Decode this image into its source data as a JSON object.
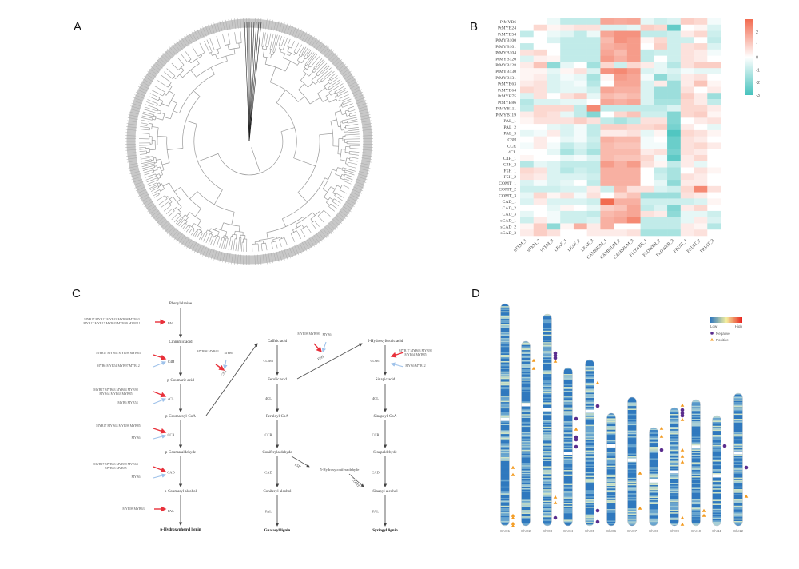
{
  "panels": {
    "a": "A",
    "b": "B",
    "c": "C",
    "d": "D"
  },
  "colors": {
    "heat_low": "#45c2bd",
    "heat_mid": "#ffffff",
    "heat_high": "#f26b50",
    "positive": "#f39a1e",
    "negative": "#5b2d8e",
    "up_arrow": "#e8303a",
    "down_arrow": "#9fc2ea"
  },
  "chart_data": {
    "type": "heatmap",
    "columns": [
      "STEM_1",
      "STEM_2",
      "STEM_3",
      "LEAF_1",
      "LEAF_2",
      "LEAF_3",
      "CAMBIUM_1",
      "CAMBIUM_2",
      "CAMBIUM_3",
      "FLOWER_1",
      "FLOWER_2",
      "FLOWER_3",
      "FRUIT_1",
      "FRUIT_2",
      "FRUIT_3"
    ],
    "rows": [
      "PtMYB6",
      "PtMYB24",
      "PtMYB54",
      "PtMYB100",
      "PtMYB101",
      "PtMYB104",
      "PtMYB120",
      "PtMYB128",
      "PtMYB130",
      "PtMYB131",
      "PtMYB63",
      "PtMYB64",
      "PtMYB75",
      "PtMYB86",
      "PtMYB111",
      "PtMYB119",
      "PAL_1",
      "PAL_2",
      "PAL_3",
      "C3H",
      "CCR",
      "4CL",
      "C4H_1",
      "C4H_2",
      "F5H_1",
      "F5H_2",
      "COMT_1",
      "COMT_2",
      "COMT_3",
      "CAD_1",
      "CAD_2",
      "CAD_3",
      "sCAD_1",
      "sCAD_2",
      "sCAD_3"
    ],
    "values": [
      [
        0,
        0,
        -0.3,
        -1,
        -1,
        -1,
        1.8,
        1.7,
        1.8,
        -0.4,
        -0.8,
        -0.6,
        1,
        0.8,
        -0.2
      ],
      [
        0,
        0.8,
        0.2,
        0.4,
        0.6,
        0.6,
        -0.6,
        -0.6,
        -0.4,
        1,
        0.8,
        -2.5,
        0,
        0.2,
        -0.6
      ],
      [
        -1,
        0,
        -0.3,
        -0.5,
        -1,
        -0.3,
        1.8,
        2.2,
        2.2,
        -1,
        -1,
        -0.8,
        0.4,
        0.8,
        -0.8
      ],
      [
        0,
        0,
        -0.6,
        -1,
        -1,
        -1,
        1.4,
        2.2,
        2,
        0.2,
        0.8,
        -0.8,
        -0.8,
        0,
        -1
      ],
      [
        -1,
        0,
        0,
        -1,
        -1,
        -1,
        1.6,
        1.8,
        2,
        0,
        1,
        -0.8,
        0.6,
        0.8,
        -0.6
      ],
      [
        0.6,
        0.8,
        0,
        -1,
        -1,
        -1,
        1.8,
        1.4,
        2,
        -1,
        -0.8,
        -0.8,
        0.6,
        0.4,
        -0.2
      ],
      [
        -0.6,
        0.3,
        0.2,
        -1,
        -1,
        -1,
        2,
        1.6,
        2,
        -1,
        0,
        -0.8,
        0.6,
        0.4,
        0
      ],
      [
        0.4,
        1.2,
        -1.8,
        -0.4,
        0,
        -1.5,
        0.8,
        -0.8,
        0.8,
        0.4,
        -0.4,
        -1.2,
        0.6,
        1,
        1
      ],
      [
        0.2,
        0.2,
        -0.4,
        0.2,
        0.6,
        -0.6,
        2.2,
        2.4,
        2,
        -0.6,
        -0.4,
        -0.6,
        -0.2,
        -0.4,
        -0.4
      ],
      [
        0.2,
        0.4,
        -0.6,
        -0.2,
        -0.4,
        -1.4,
        0.2,
        2,
        1.8,
        -0.2,
        -1.8,
        -0.8,
        0.4,
        0.6,
        0
      ],
      [
        0.4,
        0.6,
        -0.6,
        -0.4,
        -0.2,
        -1.2,
        0,
        1.8,
        1.8,
        -0.6,
        0.4,
        -1.6,
        0.4,
        1.2,
        0.2
      ],
      [
        0.8,
        0.6,
        -0.6,
        -0.4,
        -0.4,
        -0.8,
        1.8,
        1.6,
        1.6,
        -0.6,
        -1.6,
        -1.6,
        0.6,
        0,
        0.4
      ],
      [
        -0.6,
        0.6,
        0,
        0.6,
        1,
        -0.4,
        1.4,
        1.2,
        1.4,
        -0.6,
        -1.6,
        -1.6,
        1,
        0.4,
        -1.6
      ],
      [
        -1.2,
        -0.6,
        -0.6,
        -0.4,
        -0.4,
        0,
        1.8,
        1.6,
        1.8,
        -0.6,
        -1.4,
        -1.4,
        0.8,
        0.4,
        -1
      ],
      [
        -1,
        0.8,
        0.8,
        0.8,
        -1,
        2.4,
        -1,
        -1,
        -1,
        -1,
        -1,
        -0.6,
        0.8,
        0.8,
        0.4
      ],
      [
        0.4,
        0.8,
        0.6,
        -0.4,
        -1,
        -2,
        0,
        0.8,
        1.2,
        -0.8,
        -0.8,
        -2,
        0.8,
        1,
        0.2
      ],
      [
        0.2,
        0.6,
        0.6,
        0.6,
        1,
        0.6,
        -1,
        -1.4,
        -1,
        0.6,
        0.6,
        -2,
        0,
        0.4,
        0.6
      ],
      [
        0,
        0,
        -0.4,
        -0.6,
        -0.2,
        -1,
        1,
        1,
        0.8,
        0.8,
        1,
        -2.2,
        0.4,
        0,
        -0.4
      ],
      [
        -0.4,
        -0.2,
        0.4,
        -0.6,
        -0.2,
        -1,
        0.4,
        0.4,
        0.6,
        -0.4,
        0.2,
        -2.8,
        0.8,
        0.6,
        0.2
      ],
      [
        0,
        0.4,
        0,
        -0.4,
        -0.2,
        -0.8,
        1.6,
        1.4,
        1.4,
        -0.2,
        0,
        -2.4,
        0.6,
        0.4,
        0
      ],
      [
        -0.2,
        0.4,
        -0.2,
        -1,
        -0.6,
        -1,
        1.4,
        1.2,
        1.2,
        -0.2,
        -0.2,
        -2.4,
        0.6,
        0.8,
        0.4
      ],
      [
        0,
        0,
        -0.4,
        -1.4,
        -0.8,
        -1.4,
        1.4,
        1.4,
        1.4,
        0.4,
        0.6,
        -2.2,
        0.6,
        0.4,
        0
      ],
      [
        0.2,
        0,
        0,
        -0.4,
        -0.2,
        -0.6,
        1.4,
        1.2,
        1.2,
        0.8,
        -0.2,
        -2.6,
        0.4,
        0.8,
        0
      ],
      [
        -1.2,
        -0.4,
        -0.6,
        -1,
        -1,
        -1,
        2,
        1.6,
        2,
        0.6,
        0.2,
        -1,
        0.4,
        -0.4,
        0
      ],
      [
        0.8,
        0.6,
        -0.6,
        -1.2,
        -0.8,
        -1,
        1.6,
        1.6,
        1.6,
        0,
        -1,
        -1.4,
        0,
        0.6,
        0.2
      ],
      [
        0.6,
        0.4,
        -0.6,
        -0.6,
        -0.6,
        -0.8,
        1.6,
        1.6,
        1.6,
        0,
        -0.8,
        -1.4,
        0.6,
        0.4,
        0
      ],
      [
        -0.6,
        -0.2,
        -0.6,
        -0.4,
        0,
        -1,
        1.6,
        1.6,
        1.6,
        0,
        -0.4,
        -1.8,
        0.4,
        0.4,
        0
      ],
      [
        -0.8,
        -0.8,
        -0.8,
        -0.6,
        -0.6,
        0.4,
        -0.8,
        1.4,
        0.6,
        0.6,
        -0.6,
        -0.8,
        0.8,
        2.4,
        0.6
      ],
      [
        -0.4,
        0.8,
        0.2,
        0.6,
        -0.2,
        0.6,
        0,
        0.8,
        1.2,
        -1.6,
        -1.6,
        -1.6,
        0.6,
        0.4,
        0
      ],
      [
        -0.6,
        0.4,
        -0.6,
        -0.6,
        -0.6,
        -0.8,
        3,
        1.6,
        1.6,
        -0.8,
        -0.8,
        -0.8,
        -0.8,
        -0.6,
        0.2
      ],
      [
        0,
        0,
        -0.4,
        0.2,
        0,
        -0.4,
        1,
        1.2,
        1.8,
        -1,
        -0.6,
        -2,
        0.4,
        0.8,
        0
      ],
      [
        -0.4,
        0,
        -0.2,
        -0.8,
        -0.8,
        -1,
        1.4,
        1.6,
        1.8,
        0.6,
        0.4,
        -1.8,
        -0.4,
        -0.4,
        -0.8
      ],
      [
        -0.8,
        0.4,
        -0.2,
        -0.8,
        -0.8,
        -0.6,
        1.6,
        1.8,
        2.4,
        -1,
        -1,
        -1,
        -0.4,
        0.4,
        -0.6
      ],
      [
        0.2,
        1,
        -1.8,
        0.2,
        1.6,
        0.4,
        1.6,
        0,
        0,
        -1,
        -1,
        -1,
        0.4,
        0.2,
        -1.2
      ],
      [
        0.4,
        1,
        0.6,
        0,
        0,
        0.4,
        0.4,
        0.4,
        0.6,
        -1.4,
        -1.4,
        -1.4,
        0.4,
        0.6,
        0
      ]
    ],
    "colorbar": {
      "ticks": [
        "2",
        "1",
        "0",
        "-1",
        "-2",
        "-3"
      ],
      "range": [
        -3,
        3
      ]
    }
  },
  "pathway": {
    "col1": [
      "Phenylalanine",
      "Cinnamic acid",
      "p-Coumaric acid",
      "p-Coumaroyl-CoA",
      "p-Coumaraldehyde",
      "p-Coumaryl alcohol",
      "p-Hydroxyphenyl lignin"
    ],
    "col1_enzymes": [
      "PAL",
      "C4H",
      "4CL",
      "CCR",
      "CAD",
      "PAL"
    ],
    "col2": [
      "Caffeic acid",
      "Ferulic acid",
      "Feruloyl-CoA",
      "Coniferylaldehyde",
      "Coniferyl alcohol",
      "Guaiacyl lignin"
    ],
    "col2_enzymes": [
      "COMT",
      "4CL",
      "CCR",
      "CAD",
      "PAL"
    ],
    "col3": [
      "5-Hydroxyferulic acid",
      "Sinapic acid",
      "Sinapoyl-CoA",
      "Sinapaldehyde",
      "Sinapyl alcohol",
      "Syringyl lignin"
    ],
    "col3_enzymes": [
      "COMT",
      "4CL",
      "CCR",
      "CAD",
      "PAL"
    ],
    "side": {
      "c3h": "C3H",
      "f5h": "F5H",
      "f5h2": "F5H",
      "comt2": "COMT",
      "mid": "5-Hydroxyconiferaldehyde"
    },
    "genes": {
      "pal_up1": "MYB17 MYB17 MYB43 MYB98 MYB63",
      "pal_up2": "MYB17 MYB17 MYB43 MYB99 MYB111",
      "c4h_up": "MYB17 MYB64 MYB98 MYB63",
      "c4h_down": "MYB6 MYB54 MYB97 MYB12",
      "cl_up1": "MYB17 MYB63 MYB64 MYB98",
      "cl_up2": "MYB64 MYB63 MYB85",
      "cl_down": "MYB6 MYB54",
      "ccr_up": "MYB17 MYB63 MYB98 MYB85",
      "ccr_down": "MYB6",
      "cad_up1": "MYB17 MYB63 MYB98 MYB63",
      "cad_up2": "MYB63 MYB85",
      "cad_down": "MYB6",
      "pal2_up": "MYB98 MYB63",
      "c3h_up": "MYB98 MYB63",
      "c3h_down": "MYB6",
      "f5h_up": "MYB98 MYB98",
      "f5h_down": "MYB6",
      "comt_up1": "MYB17 MYB63 MYB98",
      "comt_up2": "MYB64 MYB85",
      "comt_down": "MYB6 MYB12"
    }
  },
  "chromosomes": {
    "names": [
      "Chr01",
      "Chr02",
      "Chr03",
      "Chr04",
      "Chr05",
      "Chr06",
      "Chr07",
      "Chr08",
      "Chr09",
      "Chr10",
      "Chr11",
      "Chr12"
    ],
    "legend": {
      "low": "Low",
      "high": "High",
      "negative": "Negative",
      "positive": "Positive"
    }
  }
}
